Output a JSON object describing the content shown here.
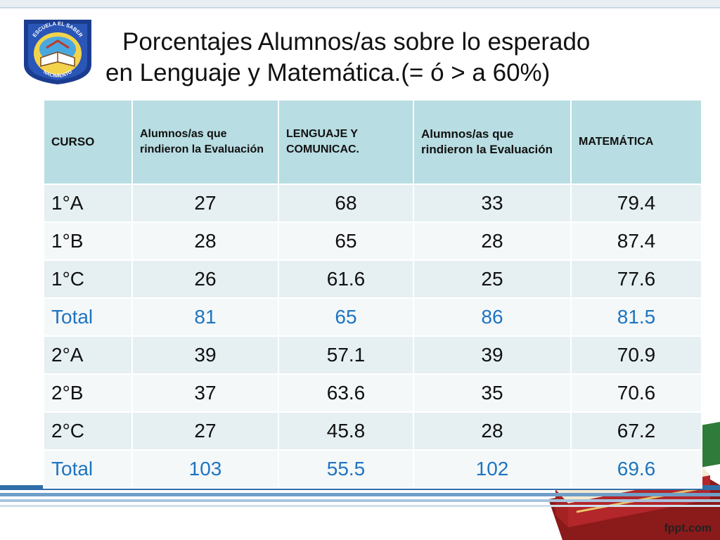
{
  "badge": {
    "top_text": "ESCUELA EL SABER",
    "bottom_text": "NACIMIENTO",
    "colors": {
      "ring": "#1b3d8f",
      "fill": "#f2d34b",
      "sky": "#4aa8e0"
    }
  },
  "title": {
    "line1": "Porcentajes Alumnos/as  sobre lo esperado",
    "line2": "en Lenguaje y Matemática.(= ó  > a 60%)"
  },
  "table": {
    "headers": [
      "CURSO",
      "Alumnos/as que rindieron la Evaluación",
      "LENGUAJE Y COMUNICAC.",
      "Alumnos/as que rindieron la Evaluación",
      "MATEMÁTICA"
    ],
    "rows": [
      [
        "1°A",
        "27",
        "68",
        "33",
        "79.4"
      ],
      [
        "1°B",
        "28",
        "65",
        "28",
        "87.4"
      ],
      [
        "1°C",
        "26",
        "61.6",
        "25",
        "77.6"
      ],
      [
        "Total",
        "81",
        "65",
        "86",
        "81.5"
      ],
      [
        "2°A",
        "39",
        "57.1",
        "39",
        "70.9"
      ],
      [
        "2°B",
        "37",
        "63.6",
        "35",
        "70.6"
      ],
      [
        "2°C",
        "27",
        "45.8",
        "28",
        "67.2"
      ],
      [
        "Total",
        "103",
        "55.5",
        "102",
        "69.6"
      ]
    ]
  },
  "footer": {
    "brand": "fppt.com"
  },
  "colors": {
    "header_bg": "#b8dde2",
    "total_text": "#1f74c0",
    "row_odd": "#e6f0f3",
    "row_even": "#f4f8f9"
  }
}
